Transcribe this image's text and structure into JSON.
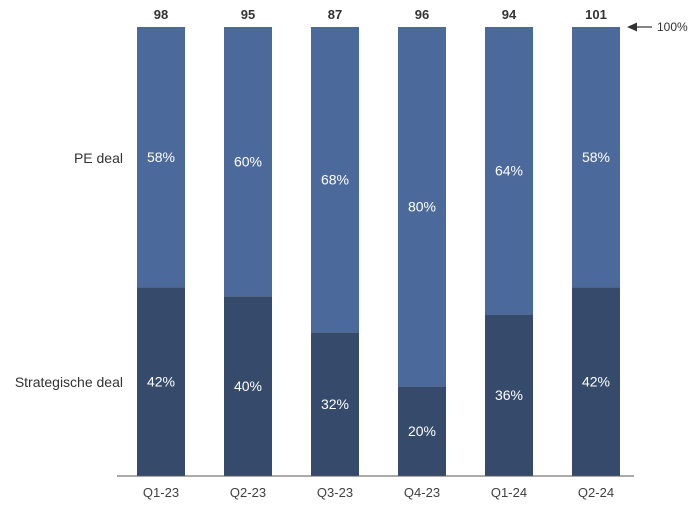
{
  "chart_data": {
    "type": "bar",
    "stacked": true,
    "normalized": true,
    "categories": [
      "Q1-23",
      "Q2-23",
      "Q3-23",
      "Q4-23",
      "Q1-24",
      "Q2-24"
    ],
    "totals": [
      "98",
      "95",
      "87",
      "96",
      "94",
      "101"
    ],
    "series": [
      {
        "name": "Strategische deal",
        "values": [
          42,
          40,
          32,
          20,
          36,
          42
        ],
        "labels": [
          "42%",
          "40%",
          "32%",
          "20%",
          "36%",
          "42%"
        ],
        "color": "#364B6B"
      },
      {
        "name": "PE deal",
        "values": [
          58,
          60,
          68,
          80,
          64,
          58
        ],
        "labels": [
          "58%",
          "60%",
          "68%",
          "80%",
          "64%",
          "58%"
        ],
        "color": "#4B6A9B"
      }
    ],
    "reference_label": "100%",
    "ylim": [
      0,
      100
    ]
  }
}
